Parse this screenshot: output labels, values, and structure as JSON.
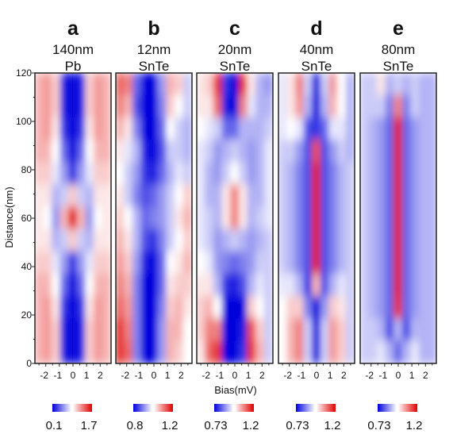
{
  "chart_data": {
    "type": "heatmap",
    "xlabel": "Bias(mV)",
    "ylabel": "Distance(nm)",
    "xlim": [
      -2.8,
      2.8
    ],
    "ylim": [
      0,
      120
    ],
    "xticks": [
      "-2",
      "-1",
      "0",
      "1",
      "2"
    ],
    "yticks": [
      "0",
      "20",
      "40",
      "60",
      "80",
      "100",
      "120"
    ],
    "grid_bias_mV": [
      -2.4,
      -1.8,
      -1.2,
      -0.6,
      0,
      0.6,
      1.2,
      1.8,
      2.4
    ],
    "grid_distance_nm_top_to_bottom": [
      120,
      110,
      100,
      90,
      80,
      70,
      60,
      50,
      40,
      30,
      20,
      10,
      0
    ],
    "value_note_scale": "normalized -1 (blue, colorbar min) to +1 (red, colorbar max)",
    "colors": {
      "low": "#0000dd",
      "mid": "#ffffff",
      "high": "#e00000"
    },
    "panels": [
      {
        "letter": "a",
        "thickness": "140nm",
        "material": "Pb",
        "cbar_min": "0.1",
        "cbar_max": "1.7",
        "values": [
          [
            0.3,
            0.4,
            0.2,
            -0.9,
            -1,
            -0.9,
            0.2,
            0.4,
            0.3
          ],
          [
            0.3,
            0.4,
            0.2,
            -0.9,
            -1,
            -0.9,
            0.2,
            0.4,
            0.3
          ],
          [
            0.3,
            0.4,
            0.1,
            -0.8,
            -1,
            -0.8,
            0.1,
            0.4,
            0.3
          ],
          [
            0.3,
            0.3,
            0,
            -0.6,
            -1,
            -0.6,
            0,
            0.3,
            0.3
          ],
          [
            0.2,
            0.2,
            -0.1,
            -0.4,
            -0.8,
            -0.4,
            -0.1,
            0.2,
            0.2
          ],
          [
            0.1,
            0.1,
            -0.3,
            -0.2,
            0.2,
            -0.2,
            -0.3,
            0.1,
            0.1
          ],
          [
            0.1,
            0,
            -0.4,
            0.3,
            0.9,
            0.3,
            -0.4,
            0,
            0.1
          ],
          [
            0.1,
            0.1,
            -0.3,
            -0.2,
            0.2,
            -0.2,
            -0.3,
            0.1,
            0.1
          ],
          [
            0.2,
            0.2,
            -0.1,
            -0.4,
            -0.8,
            -0.4,
            -0.1,
            0.2,
            0.2
          ],
          [
            0.3,
            0.3,
            0,
            -0.6,
            -1,
            -0.6,
            0,
            0.3,
            0.3
          ],
          [
            0.3,
            0.4,
            0.1,
            -0.8,
            -1,
            -0.8,
            0.1,
            0.4,
            0.3
          ],
          [
            0.3,
            0.4,
            0.2,
            -0.9,
            -1,
            -0.9,
            0.2,
            0.4,
            0.3
          ],
          [
            0.3,
            0.4,
            0.2,
            -0.9,
            -1,
            -0.9,
            0.2,
            0.4,
            0.3
          ]
        ]
      },
      {
        "letter": "b",
        "thickness": "12nm",
        "material": "SnTe",
        "cbar_min": "0.8",
        "cbar_max": "1.2",
        "values": [
          [
            0.6,
            0.5,
            -0.6,
            -1,
            -1,
            -0.4,
            0.3,
            0.2,
            -0.2
          ],
          [
            0.5,
            0.3,
            -0.7,
            -1,
            -1,
            -0.5,
            0.2,
            0,
            -0.2
          ],
          [
            0.3,
            0.1,
            -0.5,
            -1,
            -1,
            -0.6,
            0,
            -0.2,
            -0.3
          ],
          [
            0.1,
            -0.1,
            -0.3,
            -0.9,
            -1,
            -0.7,
            -0.2,
            -0.2,
            -0.3
          ],
          [
            0,
            -0.2,
            -0.4,
            -0.8,
            -0.9,
            -0.6,
            -0.3,
            -0.1,
            -0.2
          ],
          [
            0.1,
            -0.2,
            -0.5,
            -0.7,
            -0.6,
            -0.4,
            -0.2,
            0,
            0.2
          ],
          [
            0.2,
            0,
            -0.3,
            -0.6,
            -0.5,
            -0.4,
            -0.2,
            0.1,
            0.3
          ],
          [
            0.3,
            0.1,
            -0.3,
            -0.7,
            -0.8,
            -0.5,
            -0.2,
            0,
            0.2
          ],
          [
            0.4,
            0.2,
            -0.4,
            -0.9,
            -1,
            -0.6,
            0,
            0.1,
            0.3
          ],
          [
            0.5,
            0.3,
            -0.5,
            -1,
            -1,
            -0.6,
            0.1,
            0.2,
            0.2
          ],
          [
            0.6,
            0.4,
            -0.5,
            -1,
            -1,
            -0.5,
            0.2,
            0.3,
            0.1
          ],
          [
            0.8,
            0.5,
            -0.5,
            -1,
            -1,
            -0.4,
            0.3,
            0.3,
            0
          ],
          [
            0.8,
            0.6,
            -0.5,
            -1,
            -1,
            -0.4,
            0.3,
            0.2,
            0
          ]
        ]
      },
      {
        "letter": "c",
        "thickness": "20nm",
        "material": "SnTe",
        "cbar_min": "0.73",
        "cbar_max": "1.2",
        "values": [
          [
            0.1,
            0.2,
            0.8,
            -0.8,
            -1,
            0.8,
            0.1,
            -0.3,
            -0.4
          ],
          [
            0.1,
            0.1,
            0.6,
            -0.9,
            -1,
            0.5,
            -0.1,
            -0.3,
            -0.3
          ],
          [
            0,
            -0.1,
            -0.2,
            -0.6,
            -0.6,
            -0.3,
            -0.3,
            -0.3,
            -0.2
          ],
          [
            -0.1,
            -0.2,
            -0.4,
            -0.3,
            -0.2,
            -0.3,
            -0.4,
            -0.3,
            -0.1
          ],
          [
            -0.1,
            -0.3,
            -0.4,
            -0.2,
            0,
            -0.2,
            -0.4,
            -0.3,
            -0.1
          ],
          [
            -0.1,
            -0.3,
            -0.3,
            0.1,
            0.5,
            0.1,
            -0.3,
            -0.3,
            -0.1
          ],
          [
            -0.1,
            -0.2,
            -0.3,
            0.1,
            0.5,
            0.1,
            -0.3,
            -0.2,
            -0.1
          ],
          [
            -0.1,
            -0.2,
            -0.4,
            -0.3,
            -0.2,
            -0.3,
            -0.4,
            -0.3,
            -0.2
          ],
          [
            0,
            -0.1,
            -0.4,
            -0.5,
            -0.6,
            -0.5,
            -0.4,
            -0.2,
            -0.2
          ],
          [
            0.1,
            0.1,
            -0.3,
            -0.8,
            -0.9,
            -0.7,
            -0.3,
            -0.1,
            -0.2
          ],
          [
            0.2,
            0.3,
            0,
            -1,
            -1,
            -1,
            0.2,
            0,
            -0.2
          ],
          [
            0.2,
            0.5,
            0.5,
            -1,
            -1,
            -0.9,
            0.7,
            0.2,
            -0.2
          ],
          [
            0.1,
            0.6,
            0.8,
            -1,
            -1,
            -0.8,
            0.8,
            0.3,
            -0.2
          ]
        ]
      },
      {
        "letter": "d",
        "thickness": "40nm",
        "material": "SnTe",
        "cbar_min": "0.73",
        "cbar_max": "1.2",
        "values": [
          [
            -0.1,
            0.1,
            0.5,
            -0.2,
            -1,
            -0.2,
            0.4,
            0,
            -0.3
          ],
          [
            -0.1,
            0.1,
            0.4,
            -0.3,
            -1,
            -0.3,
            0.3,
            0,
            -0.3
          ],
          [
            -0.1,
            0,
            -0.1,
            -0.7,
            -0.8,
            -0.6,
            -0.1,
            -0.1,
            -0.3
          ],
          [
            -0.2,
            -0.2,
            -0.4,
            -0.7,
            0.7,
            -0.7,
            -0.4,
            -0.2,
            -0.3
          ],
          [
            -0.2,
            -0.3,
            -0.5,
            -0.7,
            0.9,
            -0.7,
            -0.5,
            -0.3,
            -0.2
          ],
          [
            -0.2,
            -0.3,
            -0.5,
            -0.7,
            0.9,
            -0.7,
            -0.5,
            -0.3,
            -0.2
          ],
          [
            -0.2,
            -0.3,
            -0.5,
            -0.7,
            0.9,
            -0.7,
            -0.5,
            -0.3,
            -0.2
          ],
          [
            -0.2,
            -0.3,
            -0.5,
            -0.7,
            0.9,
            -0.7,
            -0.5,
            -0.3,
            -0.2
          ],
          [
            -0.2,
            -0.3,
            -0.5,
            -0.7,
            0.9,
            -0.7,
            -0.5,
            -0.3,
            -0.2
          ],
          [
            -0.1,
            -0.1,
            -0.3,
            -0.8,
            0.3,
            -0.7,
            -0.3,
            -0.1,
            -0.2
          ],
          [
            0,
            0.2,
            0.2,
            -0.5,
            -1,
            -0.4,
            0.2,
            0.1,
            -0.2
          ],
          [
            0,
            0.3,
            0.5,
            -0.2,
            -1,
            -0.2,
            0.4,
            0.2,
            -0.2
          ],
          [
            0,
            0.3,
            0.5,
            -0.2,
            -1,
            -0.2,
            0.4,
            0.2,
            -0.2
          ]
        ]
      },
      {
        "letter": "e",
        "thickness": "80nm",
        "material": "SnTe",
        "cbar_min": "0.73",
        "cbar_max": "1.2",
        "values": [
          [
            -0.2,
            -0.2,
            0.1,
            -0.3,
            -0.2,
            -0.3,
            -0.2,
            -0.3,
            -0.3
          ],
          [
            -0.2,
            -0.2,
            -0.2,
            -0.5,
            0.5,
            -0.5,
            -0.2,
            -0.3,
            -0.3
          ],
          [
            -0.2,
            -0.3,
            -0.4,
            -0.6,
            0.9,
            -0.6,
            -0.4,
            -0.3,
            -0.3
          ],
          [
            -0.2,
            -0.3,
            -0.4,
            -0.6,
            0.9,
            -0.6,
            -0.4,
            -0.3,
            -0.3
          ],
          [
            -0.2,
            -0.3,
            -0.4,
            -0.6,
            0.9,
            -0.6,
            -0.4,
            -0.3,
            -0.3
          ],
          [
            -0.2,
            -0.3,
            -0.4,
            -0.6,
            0.9,
            -0.6,
            -0.4,
            -0.3,
            -0.3
          ],
          [
            -0.2,
            -0.3,
            -0.4,
            -0.6,
            0.9,
            -0.6,
            -0.4,
            -0.3,
            -0.3
          ],
          [
            -0.2,
            -0.3,
            -0.4,
            -0.6,
            0.9,
            -0.6,
            -0.4,
            -0.3,
            -0.3
          ],
          [
            -0.2,
            -0.3,
            -0.4,
            -0.6,
            0.9,
            -0.6,
            -0.4,
            -0.3,
            -0.3
          ],
          [
            -0.2,
            -0.3,
            -0.4,
            -0.6,
            0.9,
            -0.6,
            -0.4,
            -0.3,
            -0.3
          ],
          [
            -0.2,
            -0.3,
            -0.4,
            -0.6,
            0.8,
            -0.6,
            -0.4,
            -0.3,
            -0.3
          ],
          [
            -0.2,
            -0.2,
            -0.3,
            -0.7,
            -0.3,
            -0.7,
            -0.3,
            -0.3,
            -0.3
          ],
          [
            -0.2,
            -0.2,
            -0.1,
            -0.3,
            -0.6,
            -0.3,
            -0.1,
            -0.3,
            -0.3
          ]
        ]
      }
    ]
  }
}
